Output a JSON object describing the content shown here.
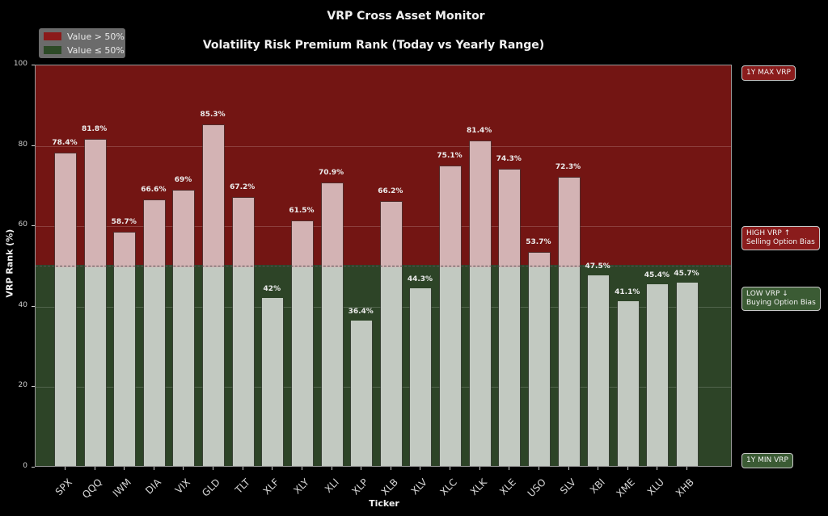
{
  "header": {
    "suptitle": "VRP Cross Asset Monitor",
    "subtitle": "Volatility Risk Premium Rank (Today vs Yearly Range)"
  },
  "legend": {
    "items": [
      {
        "label": "Value > 50%",
        "color": "#8b1a1a"
      },
      {
        "label": "Value ≤ 50%",
        "color": "#2d4a27"
      }
    ]
  },
  "axes": {
    "ylabel": "VRP Rank (%)",
    "xlabel": "Ticker",
    "yticks": [
      "0",
      "20",
      "40",
      "60",
      "80",
      "100"
    ]
  },
  "annotations": {
    "max": "1Y MAX VRP",
    "high_line1": "HIGH VRP ↑",
    "high_line2": "Selling Option Bias",
    "low_line1": "LOW VRP ↓",
    "low_line2": "Buying Option Bias",
    "min": "1Y MIN VRP"
  },
  "colors": {
    "high_zone": "#731513",
    "low_zone": "#2d4427",
    "bar_high": "#d3b3b4",
    "bar_low": "#c2c9c1"
  },
  "chart_data": {
    "type": "bar",
    "title": "VRP Cross Asset Monitor",
    "subtitle": "Volatility Risk Premium Rank (Today vs Yearly Range)",
    "xlabel": "Ticker",
    "ylabel": "VRP Rank (%)",
    "ylim": [
      0,
      100
    ],
    "yticks": [
      0,
      20,
      40,
      60,
      80,
      100
    ],
    "threshold": 50,
    "grid": true,
    "legend_position": "upper left",
    "legend": [
      "Value > 50%",
      "Value ≤ 50%"
    ],
    "categories": [
      "SPX",
      "QQQ",
      "IWM",
      "DIA",
      "VIX",
      "GLD",
      "TLT",
      "XLF",
      "XLY",
      "XLI",
      "XLP",
      "XLB",
      "XLV",
      "XLC",
      "XLK",
      "XLE",
      "USO",
      "SLV",
      "XBI",
      "XME",
      "XLU",
      "XHB"
    ],
    "values": [
      78.4,
      81.8,
      58.7,
      66.6,
      69,
      85.3,
      67.2,
      42,
      61.5,
      70.9,
      36.4,
      66.2,
      44.3,
      75.1,
      81.4,
      74.3,
      53.7,
      72.3,
      47.5,
      41.1,
      45.4,
      45.7
    ],
    "labels": [
      "78.4%",
      "81.8%",
      "58.7%",
      "66.6%",
      "69%",
      "85.3%",
      "67.2%",
      "42%",
      "61.5%",
      "70.9%",
      "36.4%",
      "66.2%",
      "44.3%",
      "75.1%",
      "81.4%",
      "74.3%",
      "53.7%",
      "72.3%",
      "47.5%",
      "41.1%",
      "45.4%",
      "45.7%"
    ],
    "annotations": [
      "1Y MAX VRP",
      "HIGH VRP ↑ Selling Option Bias",
      "LOW VRP ↓ Buying Option Bias",
      "1Y MIN VRP"
    ]
  }
}
